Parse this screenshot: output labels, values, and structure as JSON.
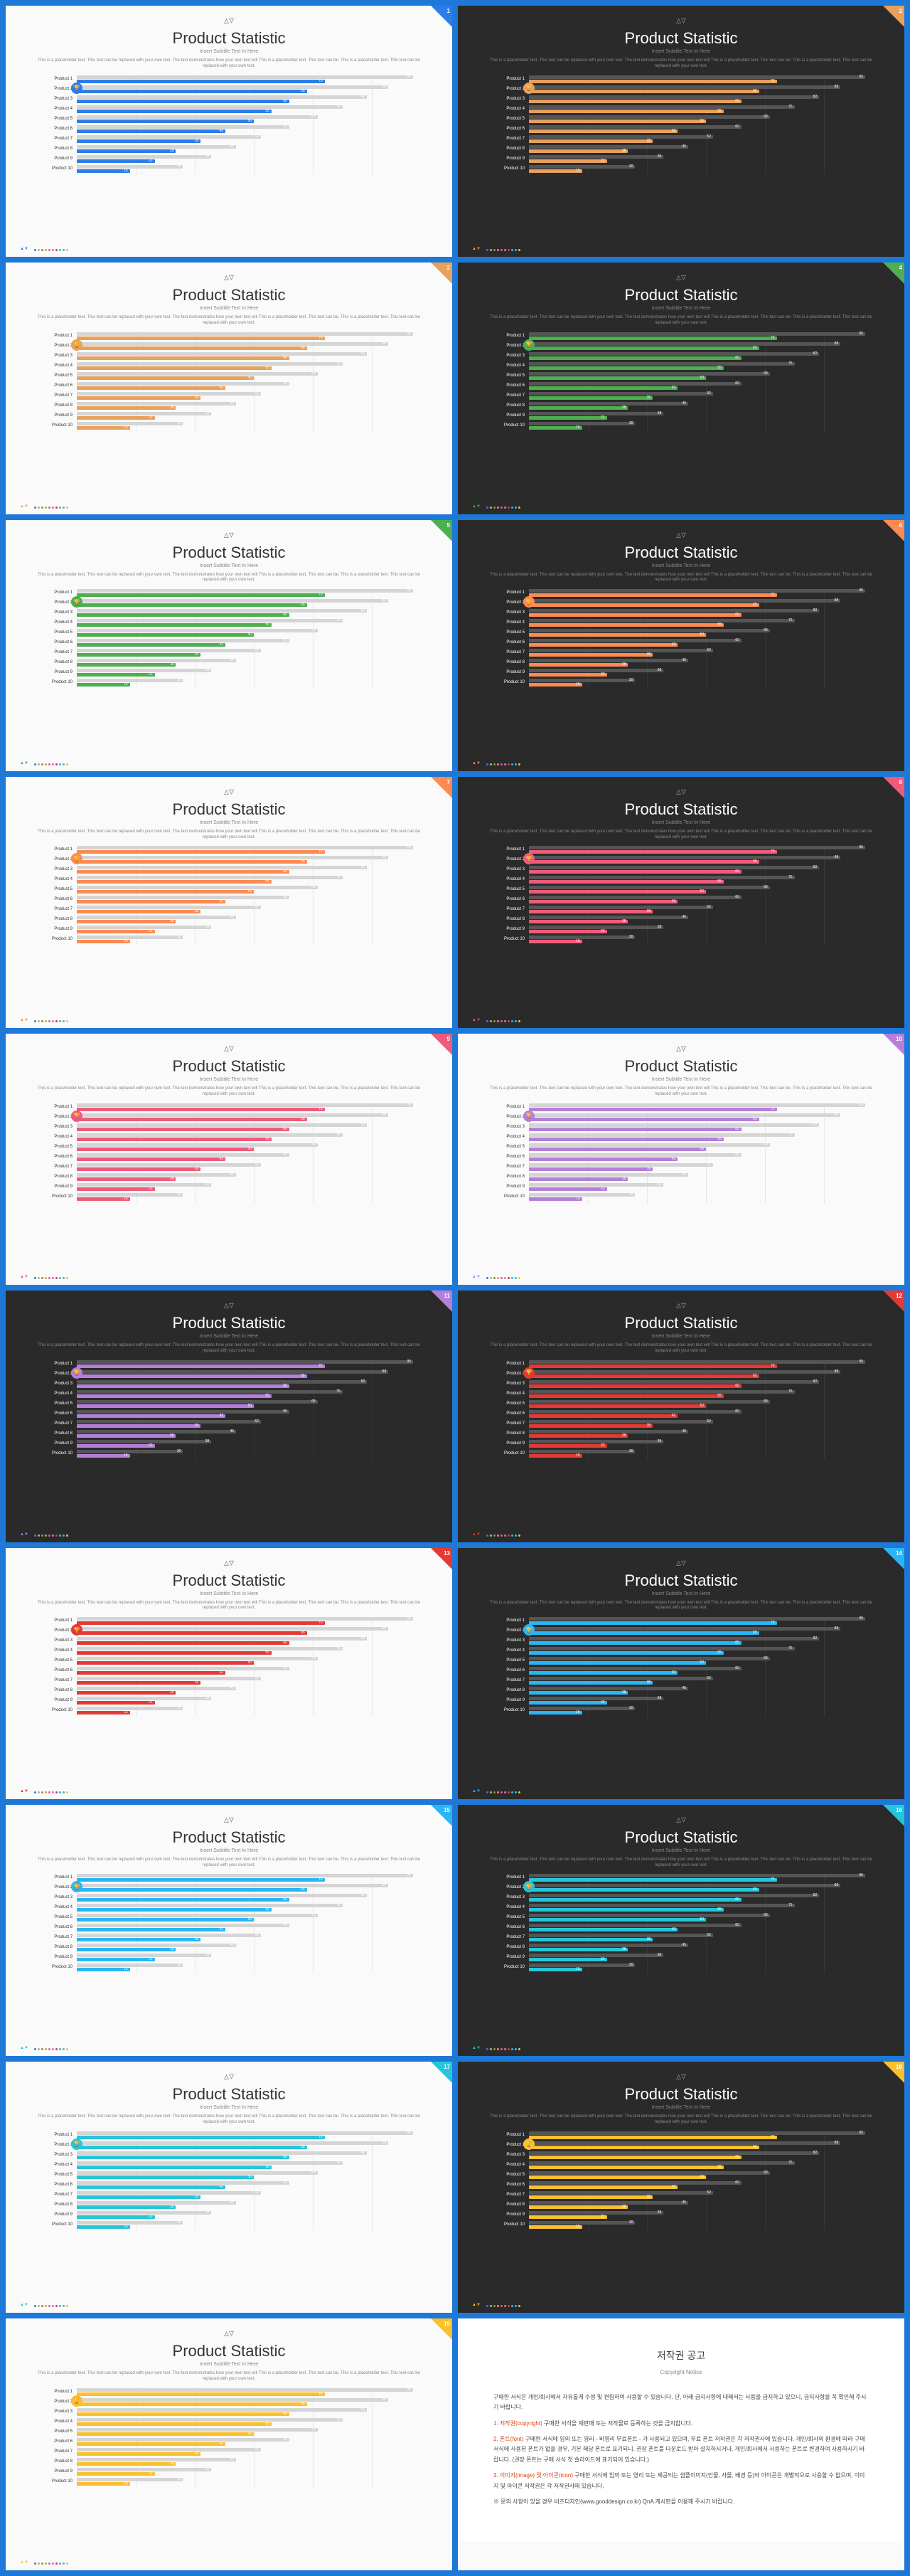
{
  "title": "Product Statistic",
  "subtitle": "Insert Subtitle Text In Here",
  "description": "This is a placeholder text. This text can be replaced with your own text. The text demonstrates how your own text will This is a placeholder text. This text can be. This is a placeholder text. This text can be replaced with your own text.",
  "products": [
    "Product 1",
    "Product 2",
    "Product 3",
    "Product 4",
    "Product 5",
    "Product 6",
    "Product 7",
    "Product 8",
    "Product 9",
    "Product 10"
  ],
  "bg_vals": [
    95,
    88,
    82,
    75,
    68,
    60,
    52,
    45,
    38,
    30
  ],
  "fg_vals": [
    70,
    65,
    60,
    55,
    50,
    42,
    35,
    28,
    22,
    15
  ],
  "light_bg_bar": "#d5d5d5",
  "dark_bg_bar": "#555555",
  "slides": [
    {
      "bg": "light",
      "accent": "#2b7de9",
      "corner": "#2b7de9"
    },
    {
      "bg": "dark",
      "accent": "#e8a05c",
      "corner": "#e8a05c"
    },
    {
      "bg": "light",
      "accent": "#e8a05c",
      "corner": "#e8a05c"
    },
    {
      "bg": "dark",
      "accent": "#4caf50",
      "corner": "#4caf50"
    },
    {
      "bg": "light",
      "accent": "#4caf50",
      "corner": "#4caf50"
    },
    {
      "bg": "dark",
      "accent": "#ff8a50",
      "corner": "#ff8a50"
    },
    {
      "bg": "light",
      "accent": "#ff8a50",
      "corner": "#ff8a50"
    },
    {
      "bg": "dark",
      "accent": "#ef5b7a",
      "corner": "#ef5b7a"
    },
    {
      "bg": "light",
      "accent": "#ef5b7a",
      "corner": "#ef5b7a"
    },
    {
      "bg": "light",
      "accent": "#b57edc",
      "corner": "#b57edc"
    },
    {
      "bg": "dark",
      "accent": "#b57edc",
      "corner": "#b57edc"
    },
    {
      "bg": "dark",
      "accent": "#e53935",
      "corner": "#e53935"
    },
    {
      "bg": "light",
      "accent": "#e53935",
      "corner": "#e53935"
    },
    {
      "bg": "dark",
      "accent": "#29b6f6",
      "corner": "#29b6f6"
    },
    {
      "bg": "light",
      "accent": "#29b6f6",
      "corner": "#29b6f6"
    },
    {
      "bg": "dark",
      "accent": "#26c6da",
      "corner": "#26c6da"
    },
    {
      "bg": "light",
      "accent": "#26c6da",
      "corner": "#26c6da"
    },
    {
      "bg": "dark",
      "accent": "#fbc02d",
      "corner": "#fbc02d"
    },
    {
      "bg": "light",
      "accent": "#fbc02d",
      "corner": "#fbc02d"
    }
  ],
  "palette": [
    "#2b7de9",
    "#e8a05c",
    "#4caf50",
    "#ff8a50",
    "#ef5b7a",
    "#b57edc",
    "#e53935",
    "#29b6f6",
    "#26c6da",
    "#fbc02d"
  ],
  "footer_logo": "▲▼",
  "notice": {
    "title": "저작권 공고",
    "sub": "Copyright Notice",
    "p1": "구매한 서식은 개인/회사에서 자유롭게 수정 및 편집하여 사용할 수 있습니다. 단, 아래 금지사항에 대해서는 사용을 금지하고 있으니, 금지사항을 꼭 확인해 주시기 바랍니다.",
    "hl1": "1. 저작권(copyright)",
    "p2": "구매한 서식을 재판매 또는 저작물로 등록하는 것을 금지합니다.",
    "hl2": "2. 폰트(font)",
    "p3": "구매한 서식에 임의 또는 영리 - 비영리 무료폰트 - 가 사용되고 있으며, 무료 폰트 저작권은 각 저작권사에 있습니다. 개인/회사의 환경에 따라 구매 서식에 사용된 폰트가 없을 경우, 기본 해당 폰트로 표기되니, 권장 폰트를 다운로드 받아 설치하시거나, 개인/회사에서 사용하는 폰트로 변경하여 사용하시기 바랍니다. (권장 폰트는 구매 서식 첫 슬라이드에 표기되어 있습니다.)",
    "hl3": "3. 이미지(image) 및 아이콘(icon)",
    "p4": "구매한 서식에 임의 또는 영리 또는 제공되는 샘플이미지(인물, 사물, 배경 등)와 아이콘은 개별적으로 사용할 수 없으며, 이미지 및 아이콘 저작권은 각 저작권사에 있습니다.",
    "p5": "※ 문의 사항이 있을 경우 비즈디자인(www.gooddesign.co.kr) QnA 게시판을 이용해 주시기 바랍니다."
  }
}
